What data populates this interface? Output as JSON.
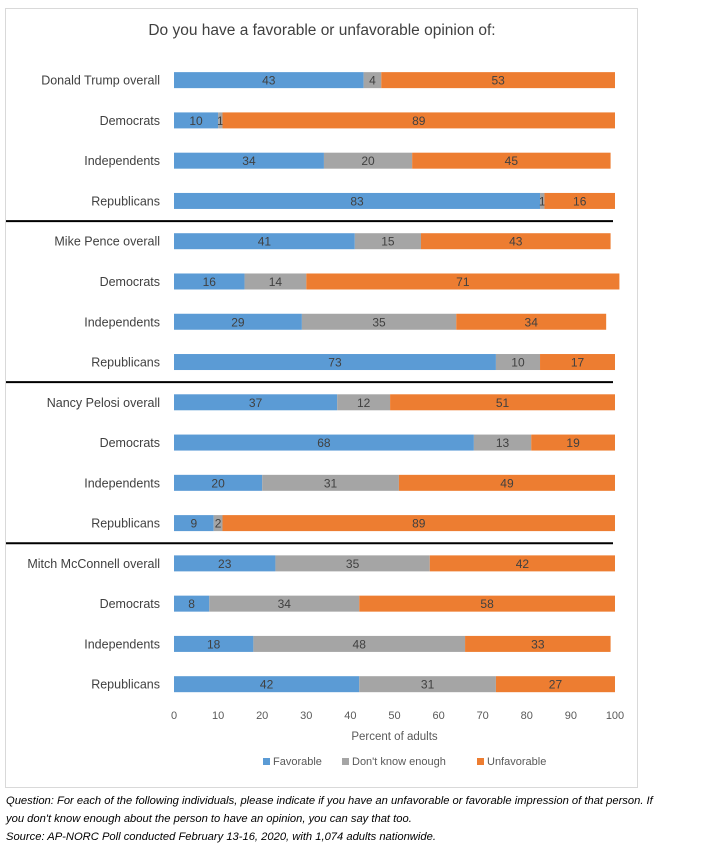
{
  "chart_data": {
    "type": "bar",
    "orientation": "horizontal",
    "stacked": true,
    "title": "Do you have a favorable or unfavorable opinion of:",
    "xlabel": "Percent of adults",
    "ylabel": "",
    "xlim": [
      0,
      100
    ],
    "xticks": [
      0,
      10,
      20,
      30,
      40,
      50,
      60,
      70,
      80,
      90,
      100
    ],
    "legend_position": "bottom",
    "grid": false,
    "categories": [
      "Donald Trump overall",
      "Democrats",
      "Independents",
      "Republicans",
      "Mike Pence overall",
      "Democrats",
      "Independents",
      "Republicans",
      "Nancy Pelosi overall",
      "Democrats",
      "Independents",
      "Republicans",
      "Mitch McConnell overall",
      "Democrats",
      "Independents",
      "Republicans"
    ],
    "series": [
      {
        "name": "Favorable",
        "color": "#5b9bd5",
        "values": [
          43,
          10,
          34,
          83,
          41,
          16,
          29,
          73,
          37,
          68,
          20,
          9,
          23,
          8,
          18,
          42
        ]
      },
      {
        "name": "Don't know enough",
        "color": "#a5a5a5",
        "values": [
          4,
          1,
          20,
          1,
          15,
          14,
          35,
          10,
          12,
          13,
          31,
          2,
          35,
          34,
          48,
          31
        ]
      },
      {
        "name": "Unfavorable",
        "color": "#ed7d31",
        "values": [
          53,
          89,
          45,
          16,
          43,
          71,
          34,
          17,
          51,
          19,
          49,
          89,
          42,
          58,
          33,
          27
        ]
      }
    ]
  },
  "footnote": {
    "line1": "Question: For each of the following individuals, please indicate if you have an unfavorable or favorable impression of that person. If",
    "line2": "you don't know enough about the person to have an opinion, you can say that too.",
    "line3": "Source: AP-NORC Poll conducted February 13-16, 2020, with 1,074 adults nationwide."
  }
}
